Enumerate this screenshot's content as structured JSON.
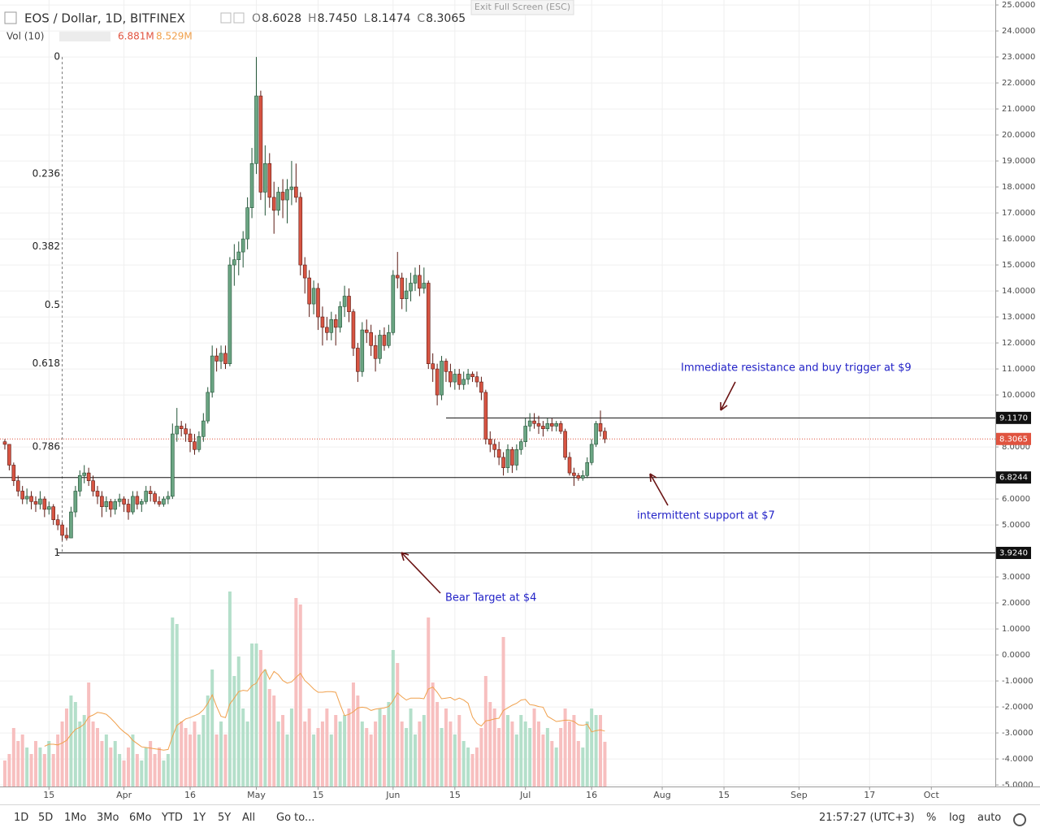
{
  "header": {
    "symbol": "EOS / Dollar, 1D, BITFINEX",
    "ohlc": [
      {
        "key": "O",
        "value": "8.6028"
      },
      {
        "key": "H",
        "value": "8.7450"
      },
      {
        "key": "L",
        "value": "8.1474"
      },
      {
        "key": "C",
        "value": "8.3065"
      }
    ],
    "exit_button": "Exit Full Screen (ESC)"
  },
  "volume_legend": {
    "label": "Vol (10)",
    "volume": "6.881M",
    "ma": "8.529M"
  },
  "toolbar": {
    "ranges": [
      "1D",
      "5D",
      "1Mo",
      "3Mo",
      "6Mo",
      "YTD",
      "1Y",
      "5Y",
      "All"
    ],
    "goto": "Go to...",
    "clock": "21:57:27 (UTC+3)",
    "options": [
      "%",
      "log",
      "auto"
    ]
  },
  "chart_data": {
    "type": "candlestick",
    "candles": [
      [
        8.2,
        8.3,
        7.9,
        8.1
      ],
      [
        8.1,
        8.1,
        7.1,
        7.3
      ],
      [
        7.3,
        7.4,
        6.5,
        6.7
      ],
      [
        6.7,
        6.9,
        6.1,
        6.3
      ],
      [
        6.3,
        6.5,
        5.8,
        6.0
      ],
      [
        6.0,
        6.4,
        5.8,
        6.1
      ],
      [
        6.1,
        6.3,
        5.6,
        5.9
      ],
      [
        5.9,
        6.1,
        5.5,
        5.8
      ],
      [
        5.8,
        6.3,
        5.6,
        6.0
      ],
      [
        6.0,
        6.1,
        5.3,
        5.6
      ],
      [
        5.6,
        5.9,
        5.4,
        5.7
      ],
      [
        5.7,
        5.8,
        5.0,
        5.2
      ],
      [
        5.2,
        5.4,
        4.8,
        5.0
      ],
      [
        5.0,
        5.1,
        4.4,
        4.6
      ],
      [
        4.6,
        4.9,
        4.4,
        4.5
      ],
      [
        4.5,
        5.7,
        4.5,
        5.5
      ],
      [
        5.5,
        6.5,
        5.3,
        6.3
      ],
      [
        6.3,
        7.1,
        6.1,
        6.9
      ],
      [
        6.9,
        7.3,
        6.6,
        7.0
      ],
      [
        7.0,
        7.2,
        6.5,
        6.7
      ],
      [
        6.7,
        6.9,
        6.1,
        6.3
      ],
      [
        6.3,
        6.5,
        5.8,
        6.1
      ],
      [
        6.1,
        6.3,
        5.3,
        5.7
      ],
      [
        5.7,
        6.1,
        5.5,
        5.9
      ],
      [
        5.9,
        6.0,
        5.3,
        5.6
      ],
      [
        5.6,
        6.0,
        5.4,
        5.9
      ],
      [
        5.9,
        6.2,
        5.7,
        6.0
      ],
      [
        6.0,
        6.1,
        5.5,
        5.8
      ],
      [
        5.8,
        6.0,
        5.2,
        5.5
      ],
      [
        5.5,
        6.3,
        5.4,
        6.1
      ],
      [
        6.1,
        6.3,
        5.6,
        5.8
      ],
      [
        5.8,
        6.0,
        5.5,
        5.9
      ],
      [
        5.9,
        6.5,
        5.8,
        6.3
      ],
      [
        6.3,
        6.5,
        5.9,
        6.2
      ],
      [
        6.2,
        6.3,
        5.8,
        5.9
      ],
      [
        5.9,
        6.1,
        5.7,
        5.8
      ],
      [
        5.8,
        6.1,
        5.7,
        6.0
      ],
      [
        6.0,
        6.3,
        5.8,
        6.1
      ],
      [
        6.1,
        8.9,
        6.0,
        8.5
      ],
      [
        8.5,
        9.5,
        8.2,
        8.8
      ],
      [
        8.8,
        9.0,
        8.4,
        8.7
      ],
      [
        8.7,
        8.9,
        8.2,
        8.5
      ],
      [
        8.5,
        8.7,
        7.8,
        8.2
      ],
      [
        8.2,
        8.5,
        7.7,
        7.9
      ],
      [
        7.9,
        8.6,
        7.8,
        8.4
      ],
      [
        8.4,
        9.3,
        8.2,
        9.0
      ],
      [
        9.0,
        10.3,
        8.9,
        10.1
      ],
      [
        10.1,
        11.9,
        9.9,
        11.5
      ],
      [
        11.5,
        11.8,
        10.9,
        11.3
      ],
      [
        11.3,
        11.9,
        11.0,
        11.6
      ],
      [
        11.6,
        11.9,
        11.0,
        11.2
      ],
      [
        11.2,
        15.3,
        11.1,
        15.0
      ],
      [
        15.0,
        15.8,
        14.2,
        15.2
      ],
      [
        15.2,
        15.9,
        14.6,
        15.5
      ],
      [
        15.5,
        16.3,
        14.9,
        16.0
      ],
      [
        16.0,
        17.6,
        15.6,
        17.2
      ],
      [
        17.2,
        19.5,
        16.8,
        18.9
      ],
      [
        18.9,
        23.0,
        18.5,
        21.5
      ],
      [
        21.5,
        21.7,
        17.5,
        17.8
      ],
      [
        17.8,
        19.6,
        16.9,
        18.9
      ],
      [
        18.9,
        19.3,
        17.2,
        17.6
      ],
      [
        17.6,
        18.2,
        16.2,
        17.1
      ],
      [
        17.1,
        18.0,
        16.9,
        17.8
      ],
      [
        17.8,
        18.3,
        16.8,
        17.5
      ],
      [
        17.5,
        18.3,
        16.6,
        17.9
      ],
      [
        17.9,
        19.0,
        17.3,
        18.0
      ],
      [
        18.0,
        18.9,
        17.4,
        17.6
      ],
      [
        17.6,
        17.8,
        14.6,
        15.0
      ],
      [
        15.0,
        15.3,
        13.9,
        14.5
      ],
      [
        14.5,
        14.8,
        13.0,
        13.5
      ],
      [
        13.5,
        14.4,
        13.1,
        14.1
      ],
      [
        14.1,
        14.3,
        12.5,
        13.0
      ],
      [
        13.0,
        13.4,
        11.9,
        12.6
      ],
      [
        12.6,
        13.0,
        12.1,
        12.4
      ],
      [
        12.4,
        13.2,
        12.1,
        12.9
      ],
      [
        12.9,
        13.1,
        11.9,
        12.6
      ],
      [
        12.6,
        13.6,
        12.4,
        13.4
      ],
      [
        13.4,
        14.2,
        13.0,
        13.8
      ],
      [
        13.8,
        14.1,
        12.8,
        13.2
      ],
      [
        13.2,
        13.3,
        11.5,
        11.8
      ],
      [
        11.8,
        12.0,
        10.5,
        10.9
      ],
      [
        10.9,
        12.8,
        10.7,
        12.5
      ],
      [
        12.5,
        12.9,
        12.0,
        12.4
      ],
      [
        12.4,
        12.7,
        11.5,
        11.9
      ],
      [
        11.9,
        12.3,
        10.9,
        11.4
      ],
      [
        11.4,
        12.5,
        11.2,
        12.3
      ],
      [
        12.3,
        12.6,
        11.7,
        11.9
      ],
      [
        11.9,
        12.7,
        11.8,
        12.4
      ],
      [
        12.4,
        14.8,
        12.3,
        14.6
      ],
      [
        14.6,
        15.5,
        14.1,
        14.5
      ],
      [
        14.5,
        14.7,
        13.3,
        13.7
      ],
      [
        13.7,
        14.5,
        13.2,
        14.0
      ],
      [
        14.0,
        14.7,
        13.6,
        14.3
      ],
      [
        14.3,
        14.9,
        14.0,
        14.6
      ],
      [
        14.6,
        15.0,
        13.8,
        14.1
      ],
      [
        14.1,
        14.9,
        13.9,
        14.3
      ],
      [
        14.3,
        14.4,
        11.0,
        11.2
      ],
      [
        11.2,
        11.6,
        10.5,
        11.0
      ],
      [
        11.0,
        11.2,
        9.6,
        10.0
      ],
      [
        10.0,
        11.5,
        9.8,
        11.3
      ],
      [
        11.3,
        11.4,
        10.5,
        10.9
      ],
      [
        10.9,
        11.2,
        10.3,
        10.5
      ],
      [
        10.5,
        11.0,
        10.2,
        10.8
      ],
      [
        10.8,
        11.0,
        10.2,
        10.4
      ],
      [
        10.4,
        10.9,
        10.2,
        10.6
      ],
      [
        10.6,
        11.0,
        10.4,
        10.8
      ],
      [
        10.8,
        10.9,
        10.5,
        10.7
      ],
      [
        10.7,
        10.9,
        10.3,
        10.5
      ],
      [
        10.5,
        10.7,
        9.8,
        10.1
      ],
      [
        10.1,
        10.2,
        8.1,
        8.3
      ],
      [
        8.3,
        8.6,
        7.8,
        8.1
      ],
      [
        8.1,
        8.3,
        7.6,
        7.9
      ],
      [
        7.9,
        8.2,
        7.3,
        7.6
      ],
      [
        7.6,
        7.8,
        6.9,
        7.2
      ],
      [
        7.2,
        8.1,
        7.0,
        7.9
      ],
      [
        7.9,
        8.0,
        7.0,
        7.3
      ],
      [
        7.3,
        8.1,
        7.1,
        7.9
      ],
      [
        7.9,
        8.3,
        7.7,
        8.2
      ],
      [
        8.2,
        9.1,
        8.0,
        8.8
      ],
      [
        8.8,
        9.3,
        8.6,
        9.0
      ],
      [
        9.0,
        9.3,
        8.7,
        8.9
      ],
      [
        8.9,
        9.2,
        8.5,
        8.8
      ],
      [
        8.8,
        9.0,
        8.4,
        8.7
      ],
      [
        8.7,
        9.1,
        8.6,
        8.9
      ],
      [
        8.9,
        9.1,
        8.6,
        8.8
      ],
      [
        8.8,
        9.0,
        8.6,
        8.9
      ],
      [
        8.9,
        9.0,
        8.5,
        8.6
      ],
      [
        8.6,
        8.7,
        7.5,
        7.6
      ],
      [
        7.6,
        7.8,
        6.9,
        7.0
      ],
      [
        7.0,
        7.2,
        6.5,
        6.9
      ],
      [
        6.9,
        7.0,
        6.7,
        6.8
      ],
      [
        6.8,
        7.1,
        6.7,
        6.9
      ],
      [
        6.9,
        7.6,
        6.8,
        7.4
      ],
      [
        7.4,
        8.3,
        7.3,
        8.1
      ],
      [
        8.1,
        9.0,
        8.0,
        8.9
      ],
      [
        8.9,
        9.4,
        8.4,
        8.6028
      ],
      [
        8.6028,
        8.745,
        8.1474,
        8.3065
      ]
    ],
    "volume": [
      4,
      5,
      9,
      7,
      8,
      6,
      5,
      7,
      6,
      5,
      7,
      5,
      8,
      10,
      12,
      14,
      13,
      10,
      11,
      16,
      10,
      9,
      7,
      8,
      6,
      7,
      5,
      4,
      6,
      8,
      5,
      4,
      6,
      7,
      5,
      6,
      4,
      5,
      26,
      25,
      10,
      9,
      8,
      10,
      8,
      11,
      14,
      18,
      8,
      10,
      8,
      30,
      17,
      20,
      12,
      10,
      22,
      22,
      21,
      18,
      15,
      14,
      10,
      11,
      8,
      12,
      29,
      28,
      10,
      12,
      8,
      9,
      10,
      12,
      8,
      11,
      10,
      11,
      12,
      16,
      14,
      10,
      9,
      8,
      10,
      12,
      11,
      13,
      21,
      19,
      10,
      9,
      12,
      8,
      10,
      11,
      26,
      16,
      13,
      9,
      12,
      10,
      8,
      11,
      7,
      6,
      5,
      6,
      9,
      17,
      13,
      12,
      9,
      23,
      11,
      10,
      8,
      11,
      10,
      9,
      12,
      10,
      8,
      9,
      7,
      6,
      9,
      12,
      10,
      11,
      7,
      6,
      10,
      12,
      11,
      11,
      6.881
    ],
    "volume_ma": [
      null,
      null,
      null,
      null,
      null,
      null,
      null,
      null,
      null,
      6.2,
      6.5,
      6.5,
      6.4,
      6.7,
      7.1,
      8.0,
      8.8,
      9.1,
      9.6,
      10.7,
      11.0,
      11.4,
      11.3,
      11.1,
      10.5,
      9.8,
      9.0,
      8.4,
      7.9,
      7.1,
      6.6,
      6.1,
      6.0,
      5.9,
      5.8,
      5.7,
      5.6,
      5.7,
      7.7,
      9.4,
      9.9,
      10.4,
      10.6,
      10.9,
      11.2,
      11.8,
      12.8,
      14.1,
      12.3,
      10.8,
      10.6,
      12.7,
      13.6,
      14.6,
      14.8,
      14.7,
      15.5,
      15.9,
      17.2,
      18.0,
      16.5,
      17.7,
      17.2,
      16.3,
      15.9,
      16.1,
      16.8,
      17.4,
      16.3,
      15.7,
      15.0,
      14.5,
      14.5,
      14.6,
      14.6,
      14.5,
      12.6,
      10.9,
      11.1,
      11.5,
      12.1,
      12.2,
      12.1,
      11.7,
      11.9,
      12.0,
      12.1,
      12.3,
      13.2,
      14.4,
      13.8,
      13.3,
      13.6,
      13.6,
      13.6,
      13.5,
      15.0,
      15.3,
      14.5,
      13.5,
      13.6,
      13.7,
      13.3,
      13.6,
      13.3,
      12.8,
      10.7,
      9.7,
      9.3,
      10.1,
      10.2,
      10.4,
      10.5,
      11.7,
      12.1,
      12.5,
      12.8,
      13.3,
      13.4,
      12.6,
      12.5,
      12.3,
      12.2,
      10.8,
      10.4,
      10.0,
      10.1,
      10.2,
      10.2,
      10.0,
      9.5,
      9.4,
      9.6,
      8.4,
      8.6,
      8.7,
      8.529
    ],
    "up_color": "#6ba583",
    "down_color": "#d75442",
    "volume_up_color": "#b4dfca",
    "volume_down_color": "#f7bfbf",
    "volume_ma_color": "#f0a04c",
    "ylim": [
      -5.06,
      25.19
    ],
    "yticks": [
      {
        "value": 25,
        "label": "25.0000"
      },
      {
        "value": 24,
        "label": "24.0000"
      },
      {
        "value": 23,
        "label": "23.0000"
      },
      {
        "value": 22,
        "label": "22.0000"
      },
      {
        "value": 21,
        "label": "21.0000"
      },
      {
        "value": 20,
        "label": "20.0000"
      },
      {
        "value": 19,
        "label": "19.0000"
      },
      {
        "value": 18,
        "label": "18.0000"
      },
      {
        "value": 17,
        "label": "17.0000"
      },
      {
        "value": 16,
        "label": "16.0000"
      },
      {
        "value": 15,
        "label": "15.0000"
      },
      {
        "value": 14,
        "label": "14.0000"
      },
      {
        "value": 13,
        "label": "13.0000"
      },
      {
        "value": 12,
        "label": "12.0000"
      },
      {
        "value": 11,
        "label": "11.0000"
      },
      {
        "value": 10,
        "label": "10.0000"
      },
      {
        "value": 8,
        "label": "8.0000"
      },
      {
        "value": 6,
        "label": "6.0000"
      },
      {
        "value": 5,
        "label": "5.0000"
      },
      {
        "value": 3,
        "label": "3.0000"
      },
      {
        "value": 2,
        "label": "2.0000"
      },
      {
        "value": 1,
        "label": "1.0000"
      },
      {
        "value": 0,
        "label": "0.0000"
      },
      {
        "value": -1,
        "label": "-1.0000"
      },
      {
        "value": -2,
        "label": "-2.0000"
      },
      {
        "value": -3,
        "label": "-3.0000"
      },
      {
        "value": -4,
        "label": "-4.0000"
      },
      {
        "value": -5,
        "label": "-5.0000"
      }
    ],
    "xlim": [
      -1.1,
      224.5
    ],
    "xticks": [
      {
        "value": 10,
        "label": "15"
      },
      {
        "value": 27,
        "label": "Apr"
      },
      {
        "value": 42,
        "label": "16"
      },
      {
        "value": 57,
        "label": "May"
      },
      {
        "value": 71,
        "label": "15"
      },
      {
        "value": 88,
        "label": "Jun"
      },
      {
        "value": 102,
        "label": "15"
      },
      {
        "value": 118,
        "label": "Jul"
      },
      {
        "value": 133,
        "label": "16"
      },
      {
        "value": 149,
        "label": "Aug"
      },
      {
        "value": 163,
        "label": "15"
      },
      {
        "value": 180,
        "label": "Sep"
      },
      {
        "value": 196,
        "label": "17"
      },
      {
        "value": 210,
        "label": "Oct"
      }
    ],
    "volume_ylim": [
      0,
      30
    ],
    "grid": true,
    "fibonacci": {
      "high": 23,
      "low": 3.924,
      "levels": [
        0,
        0.236,
        0.382,
        0.5,
        0.618,
        0.786,
        1
      ]
    },
    "hlines": [
      {
        "value": 9.117,
        "label": "9.1170"
      },
      {
        "value": 6.8244,
        "label": "6.8244"
      },
      {
        "value": 3.924,
        "label": "3.9240"
      }
    ],
    "last_price": 8.3065,
    "annotations": [
      "Immediate resistance and buy trigger at $9",
      "intermittent support at $7",
      "Bear Target at $4"
    ]
  }
}
